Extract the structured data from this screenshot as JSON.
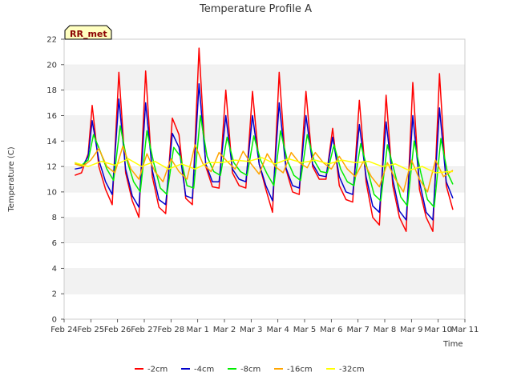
{
  "chart_data": {
    "type": "line",
    "title": "Temperature Profile A",
    "xlabel": "Time",
    "ylabel": "Temperature (C)",
    "badge": "RR_met",
    "ylim": [
      0,
      22
    ],
    "yticks": [
      0,
      2,
      4,
      6,
      8,
      10,
      12,
      14,
      16,
      18,
      20,
      22
    ],
    "xlim": [
      0,
      15
    ],
    "xtick_labels": [
      "Feb 24",
      "Feb 25",
      "Feb 26",
      "Feb 27",
      "Feb 28",
      "Mar 1",
      "Mar 2",
      "Mar 3",
      "Mar 4",
      "Mar 5",
      "Mar 6",
      "Mar 7",
      "Mar 8",
      "Mar 9",
      "Mar 10",
      "Mar 11"
    ],
    "grid": true,
    "legend_position": "bottom",
    "colors": {
      "-2cm": "#ff0000",
      "-4cm": "#0000cc",
      "-8cm": "#00ee00",
      "-16cm": "#ffa500",
      "-32cm": "#ffff00"
    },
    "series": [
      {
        "name": "-2cm",
        "x": [
          0.4,
          0.65,
          0.9,
          1.05,
          1.3,
          1.55,
          1.8,
          2.05,
          2.3,
          2.55,
          2.8,
          3.05,
          3.3,
          3.55,
          3.8,
          4.05,
          4.3,
          4.55,
          4.8,
          5.05,
          5.3,
          5.55,
          5.8,
          6.05,
          6.3,
          6.55,
          6.8,
          7.05,
          7.3,
          7.55,
          7.8,
          8.05,
          8.3,
          8.55,
          8.8,
          9.05,
          9.3,
          9.55,
          9.8,
          10.05,
          10.3,
          10.55,
          10.8,
          11.05,
          11.3,
          11.55,
          11.8,
          12.05,
          12.3,
          12.55,
          12.8,
          13.05,
          13.3,
          13.55,
          13.8,
          14.05,
          14.3,
          14.55
        ],
        "y": [
          11.3,
          11.5,
          13.0,
          16.8,
          12.0,
          10.2,
          9.0,
          19.4,
          11.5,
          9.3,
          8.0,
          19.5,
          11.2,
          8.8,
          8.3,
          15.8,
          14.5,
          9.5,
          9.0,
          21.3,
          12.0,
          10.4,
          10.3,
          18.0,
          11.5,
          10.5,
          10.3,
          17.9,
          12.2,
          10.2,
          8.4,
          19.4,
          11.8,
          10.0,
          9.8,
          17.9,
          12.0,
          11.0,
          11.0,
          15.0,
          10.5,
          9.4,
          9.2,
          17.2,
          10.8,
          8.0,
          7.4,
          17.6,
          10.5,
          8.0,
          6.9,
          18.6,
          10.2,
          8.0,
          6.9,
          19.3,
          10.5,
          8.6
        ]
      },
      {
        "name": "-4cm",
        "x": [
          0.4,
          0.65,
          0.9,
          1.05,
          1.3,
          1.55,
          1.8,
          2.05,
          2.3,
          2.55,
          2.8,
          3.05,
          3.3,
          3.55,
          3.8,
          4.05,
          4.3,
          4.55,
          4.8,
          5.05,
          5.3,
          5.55,
          5.8,
          6.05,
          6.3,
          6.55,
          6.8,
          7.05,
          7.3,
          7.55,
          7.8,
          8.05,
          8.3,
          8.55,
          8.8,
          9.05,
          9.3,
          9.55,
          9.8,
          10.05,
          10.3,
          10.55,
          10.8,
          11.05,
          11.3,
          11.55,
          11.8,
          12.05,
          12.3,
          12.55,
          12.8,
          13.05,
          13.3,
          13.55,
          13.8,
          14.05,
          14.3,
          14.55
        ],
        "y": [
          11.8,
          11.9,
          12.8,
          15.6,
          12.5,
          10.8,
          9.8,
          17.3,
          11.8,
          9.7,
          8.8,
          17.0,
          11.7,
          9.4,
          9.0,
          14.6,
          13.5,
          9.7,
          9.5,
          18.5,
          12.2,
          10.8,
          10.8,
          16.0,
          11.8,
          11.0,
          10.8,
          16.0,
          12.2,
          10.5,
          9.3,
          17.0,
          11.9,
          10.5,
          10.3,
          16.0,
          12.2,
          11.3,
          11.2,
          14.3,
          11.2,
          10.0,
          9.8,
          15.3,
          11.2,
          8.9,
          8.4,
          15.5,
          11.0,
          8.5,
          7.8,
          16.0,
          10.8,
          8.4,
          7.8,
          16.6,
          10.8,
          9.5
        ]
      },
      {
        "name": "-8cm",
        "x": [
          0.4,
          0.65,
          0.9,
          1.1,
          1.35,
          1.6,
          1.85,
          2.1,
          2.35,
          2.6,
          2.85,
          3.1,
          3.35,
          3.6,
          3.85,
          4.1,
          4.35,
          4.6,
          4.85,
          5.1,
          5.35,
          5.6,
          5.85,
          6.1,
          6.35,
          6.6,
          6.85,
          7.1,
          7.35,
          7.6,
          7.85,
          8.1,
          8.35,
          8.6,
          8.85,
          9.1,
          9.35,
          9.6,
          9.85,
          10.1,
          10.35,
          10.6,
          10.85,
          11.1,
          11.35,
          11.6,
          11.85,
          12.1,
          12.35,
          12.6,
          12.85,
          13.1,
          13.35,
          13.6,
          13.85,
          14.1,
          14.35,
          14.55
        ],
        "y": [
          12.3,
          12.1,
          12.5,
          14.5,
          13.2,
          11.8,
          10.9,
          15.2,
          12.5,
          10.8,
          10.0,
          14.8,
          12.3,
          10.3,
          9.8,
          13.5,
          12.8,
          10.5,
          10.3,
          16.0,
          12.8,
          11.6,
          11.3,
          14.3,
          12.3,
          11.6,
          11.3,
          14.4,
          12.5,
          11.4,
          10.5,
          14.8,
          12.5,
          11.3,
          10.9,
          14.5,
          12.5,
          11.6,
          11.5,
          13.7,
          11.8,
          10.8,
          10.5,
          13.8,
          11.8,
          9.8,
          9.3,
          13.7,
          11.7,
          9.6,
          8.9,
          14.0,
          11.5,
          9.4,
          8.8,
          14.2,
          11.5,
          10.6
        ]
      },
      {
        "name": "-16cm",
        "x": [
          0.4,
          0.7,
          1.0,
          1.3,
          1.6,
          1.9,
          2.2,
          2.5,
          2.8,
          3.1,
          3.4,
          3.7,
          4.0,
          4.3,
          4.6,
          4.9,
          5.2,
          5.5,
          5.8,
          6.1,
          6.4,
          6.7,
          7.0,
          7.3,
          7.6,
          7.9,
          8.2,
          8.5,
          8.8,
          9.1,
          9.4,
          9.7,
          10.0,
          10.3,
          10.6,
          10.9,
          11.2,
          11.5,
          11.8,
          12.1,
          12.4,
          12.7,
          13.0,
          13.3,
          13.6,
          13.9,
          14.2,
          14.55
        ],
        "y": [
          12.2,
          12.0,
          12.5,
          13.4,
          12.0,
          11.5,
          13.6,
          11.8,
          11.0,
          13.0,
          11.6,
          10.8,
          12.6,
          11.6,
          11.0,
          13.7,
          12.2,
          11.6,
          13.1,
          12.4,
          11.8,
          13.2,
          12.2,
          11.4,
          13.0,
          12.0,
          11.5,
          13.1,
          12.3,
          11.9,
          13.1,
          12.3,
          11.8,
          12.8,
          11.8,
          11.2,
          12.4,
          11.2,
          10.4,
          12.3,
          11.0,
          10.0,
          12.5,
          11.0,
          10.0,
          12.5,
          11.2,
          11.7
        ]
      },
      {
        "name": "-32cm",
        "x": [
          0.4,
          0.9,
          1.4,
          1.9,
          2.4,
          2.9,
          3.4,
          3.9,
          4.4,
          4.9,
          5.4,
          5.9,
          6.4,
          6.9,
          7.4,
          7.9,
          8.4,
          8.9,
          9.4,
          9.9,
          10.4,
          10.9,
          11.4,
          11.9,
          12.4,
          12.9,
          13.4,
          13.9,
          14.4,
          14.55
        ],
        "y": [
          12.3,
          12.0,
          12.4,
          12.1,
          12.6,
          12.0,
          12.4,
          11.8,
          12.2,
          11.8,
          12.3,
          12.3,
          12.5,
          12.4,
          12.7,
          12.2,
          12.6,
          12.3,
          12.5,
          12.2,
          12.5,
          12.3,
          12.4,
          12.0,
          12.2,
          11.7,
          12.0,
          11.5,
          11.6,
          11.6
        ]
      }
    ]
  }
}
